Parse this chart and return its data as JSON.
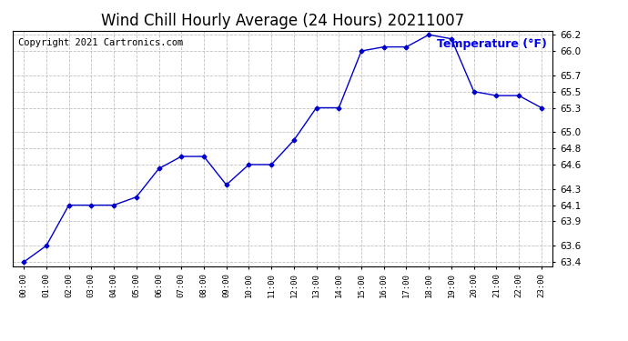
{
  "title": "Wind Chill Hourly Average (24 Hours) 20211007",
  "copyright_text": "Copyright 2021 Cartronics.com",
  "legend_text": "Temperature (°F)",
  "hours": [
    "00:00",
    "01:00",
    "02:00",
    "03:00",
    "04:00",
    "05:00",
    "06:00",
    "07:00",
    "08:00",
    "09:00",
    "10:00",
    "11:00",
    "12:00",
    "13:00",
    "14:00",
    "15:00",
    "16:00",
    "17:00",
    "18:00",
    "19:00",
    "20:00",
    "21:00",
    "22:00",
    "23:00"
  ],
  "values": [
    63.4,
    63.6,
    64.1,
    64.1,
    64.1,
    64.2,
    64.55,
    64.7,
    64.7,
    64.35,
    64.6,
    64.6,
    64.9,
    65.3,
    65.3,
    66.0,
    66.05,
    66.05,
    66.2,
    66.15,
    65.5,
    65.45,
    65.45,
    65.3
  ],
  "ylim_min": 63.35,
  "ylim_max": 66.25,
  "yticks": [
    63.4,
    63.6,
    63.9,
    64.1,
    64.3,
    64.6,
    64.8,
    65.0,
    65.3,
    65.5,
    65.7,
    66.0,
    66.2
  ],
  "line_color": "#0000cc",
  "marker": "D",
  "marker_size": 3,
  "marker_color": "#0000cc",
  "background_color": "#ffffff",
  "grid_color": "#c0c0c0",
  "title_fontsize": 12,
  "copyright_fontsize": 7.5,
  "legend_color": "#0000ee",
  "legend_fontsize": 9
}
